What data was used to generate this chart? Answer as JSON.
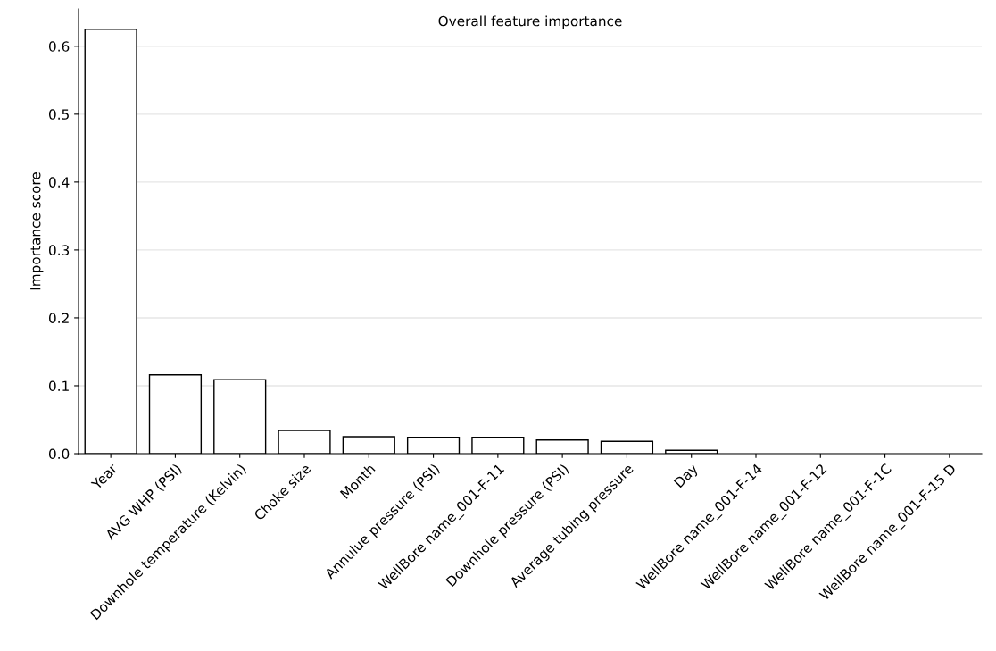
{
  "chart_data": {
    "type": "bar",
    "title": "Overall feature importance",
    "ylabel": "Importance score",
    "categories": [
      "Year",
      "AVG WHP (PSI)",
      "Downhole temperature (Kelvin)",
      "Choke size",
      "Month",
      "Annulue pressure (PSI)",
      "WellBore name_001-F-11",
      "Downhole pressure (PSI)",
      "Average tubing pressure",
      "Day",
      "WellBore name_001-F-14",
      "WellBore name_001-F-12",
      "WellBore name_001-F-1C",
      "WellBore name_001-F-15 D"
    ],
    "values": [
      0.625,
      0.116,
      0.109,
      0.034,
      0.025,
      0.024,
      0.024,
      0.02,
      0.018,
      0.005,
      null,
      null,
      null,
      null
    ],
    "color": "#ffffff",
    "ylim": [
      0,
      0.655
    ],
    "yticks": [
      {
        "value": 0,
        "label": "0.0"
      },
      0.1,
      0.2,
      0.3,
      0.4,
      0.5,
      0.6
    ],
    "grid": "y"
  }
}
